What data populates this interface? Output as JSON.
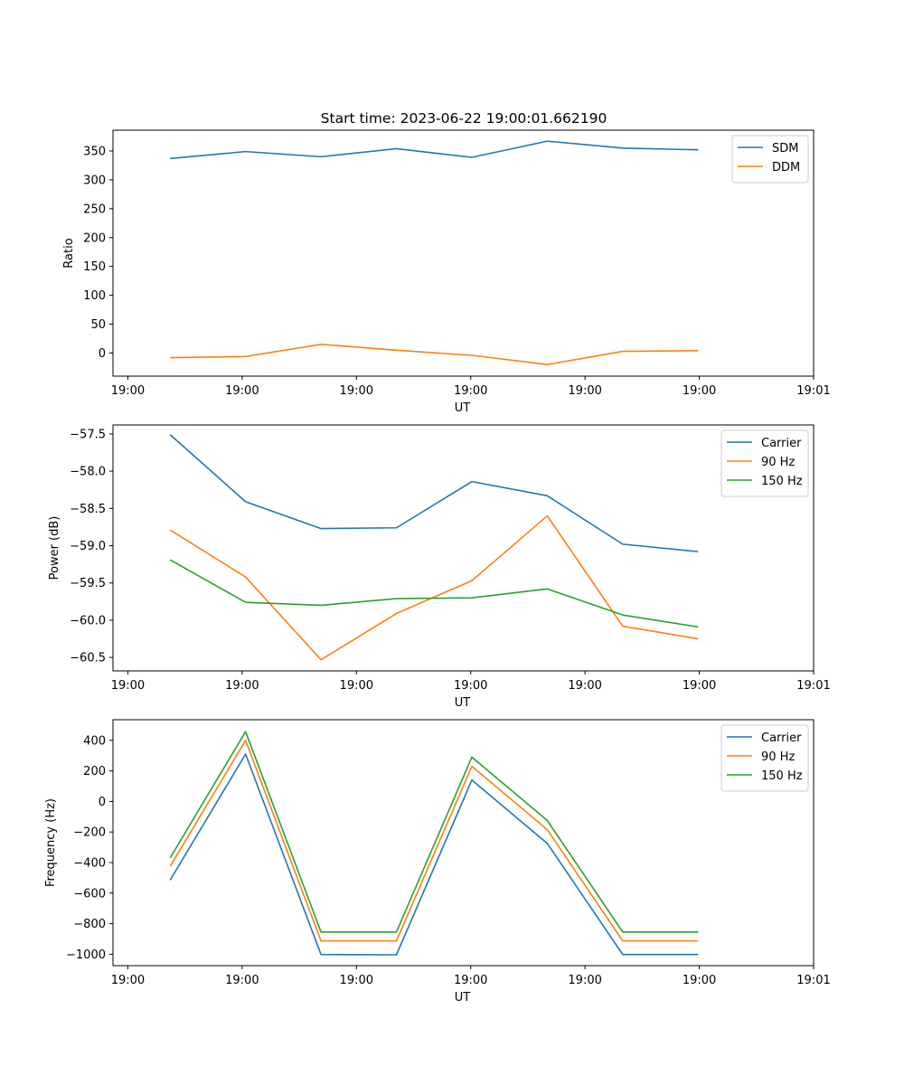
{
  "figure": {
    "title": "Start time: 2023-06-22 19:00:01.662190"
  },
  "colors": {
    "blue": "#1f77b4",
    "orange": "#ff7f0e",
    "green": "#2ca02c"
  },
  "chart_data": [
    {
      "type": "line",
      "title": "Start time: 2023-06-22 19:00:01.662190",
      "xlabel": "UT",
      "ylabel": "Ratio",
      "x": [
        0.5,
        1.16,
        1.82,
        2.48,
        3.14,
        3.8,
        4.46,
        5.12
      ],
      "xlim": [
        0,
        6.13
      ],
      "xticks": [
        0.13,
        1.13,
        2.13,
        3.13,
        4.13,
        5.13,
        6.13
      ],
      "xticklabels": [
        "19:00",
        "19:00",
        "19:00",
        "19:00",
        "19:00",
        "19:00",
        "19:01"
      ],
      "ylim": [
        -40,
        386
      ],
      "yticks": [
        0,
        50,
        100,
        150,
        200,
        250,
        300,
        350
      ],
      "yticklabels": [
        "0",
        "50",
        "100",
        "150",
        "200",
        "250",
        "300",
        "350"
      ],
      "grid": false,
      "legend": "top-right",
      "series": [
        {
          "name": "SDM",
          "color": "blue",
          "values": [
            337,
            349,
            340,
            354,
            339,
            367,
            355,
            352
          ]
        },
        {
          "name": "DDM",
          "color": "orange",
          "values": [
            -8,
            -6,
            15,
            5,
            -4,
            -20,
            3,
            4
          ]
        }
      ]
    },
    {
      "type": "line",
      "xlabel": "UT",
      "ylabel": "Power (dB)",
      "x": [
        0.5,
        1.16,
        1.82,
        2.48,
        3.14,
        3.8,
        4.46,
        5.12
      ],
      "xlim": [
        0,
        6.13
      ],
      "xticks": [
        0.13,
        1.13,
        2.13,
        3.13,
        4.13,
        5.13,
        6.13
      ],
      "xticklabels": [
        "19:00",
        "19:00",
        "19:00",
        "19:00",
        "19:00",
        "19:00",
        "19:01"
      ],
      "ylim": [
        -60.68,
        -57.38
      ],
      "yticks": [
        -60.5,
        -60.0,
        -59.5,
        -59.0,
        -58.5,
        -58.0,
        -57.5
      ],
      "yticklabels": [
        "−60.5",
        "−60.0",
        "−59.5",
        "−59.0",
        "−58.5",
        "−58.0",
        "−57.5"
      ],
      "grid": false,
      "legend": "top-right",
      "series": [
        {
          "name": "Carrier",
          "color": "blue",
          "values": [
            -57.51,
            -58.41,
            -58.77,
            -58.76,
            -58.14,
            -58.33,
            -58.98,
            -59.08
          ]
        },
        {
          "name": "90 Hz",
          "color": "orange",
          "values": [
            -58.79,
            -59.42,
            -60.53,
            -59.91,
            -59.47,
            -58.6,
            -60.08,
            -60.25
          ]
        },
        {
          "name": "150 Hz",
          "color": "green",
          "values": [
            -59.19,
            -59.76,
            -59.8,
            -59.71,
            -59.7,
            -59.58,
            -59.93,
            -60.09
          ]
        }
      ]
    },
    {
      "type": "line",
      "xlabel": "UT",
      "ylabel": "Frequency (Hz)",
      "x": [
        0.5,
        1.16,
        1.82,
        2.48,
        3.14,
        3.8,
        4.46,
        5.12
      ],
      "xlim": [
        0,
        6.13
      ],
      "xticks": [
        0.13,
        1.13,
        2.13,
        3.13,
        4.13,
        5.13,
        6.13
      ],
      "xticklabels": [
        "19:00",
        "19:00",
        "19:00",
        "19:00",
        "19:00",
        "19:00",
        "19:01"
      ],
      "ylim": [
        -1075,
        535
      ],
      "yticks": [
        -1000,
        -800,
        -600,
        -400,
        -200,
        0,
        200,
        400
      ],
      "yticklabels": [
        "−1000",
        "−800",
        "−600",
        "−400",
        "−200",
        "0",
        "200",
        "400"
      ],
      "grid": false,
      "legend": "top-right",
      "series": [
        {
          "name": "Carrier",
          "color": "blue",
          "values": [
            -515,
            310,
            -1002,
            -1004,
            140,
            -275,
            -1002,
            -1002
          ]
        },
        {
          "name": "90 Hz",
          "color": "orange",
          "values": [
            -425,
            400,
            -913,
            -913,
            230,
            -185,
            -913,
            -913
          ]
        },
        {
          "name": "150 Hz",
          "color": "green",
          "values": [
            -370,
            457,
            -855,
            -855,
            290,
            -125,
            -855,
            -855
          ]
        }
      ]
    }
  ]
}
